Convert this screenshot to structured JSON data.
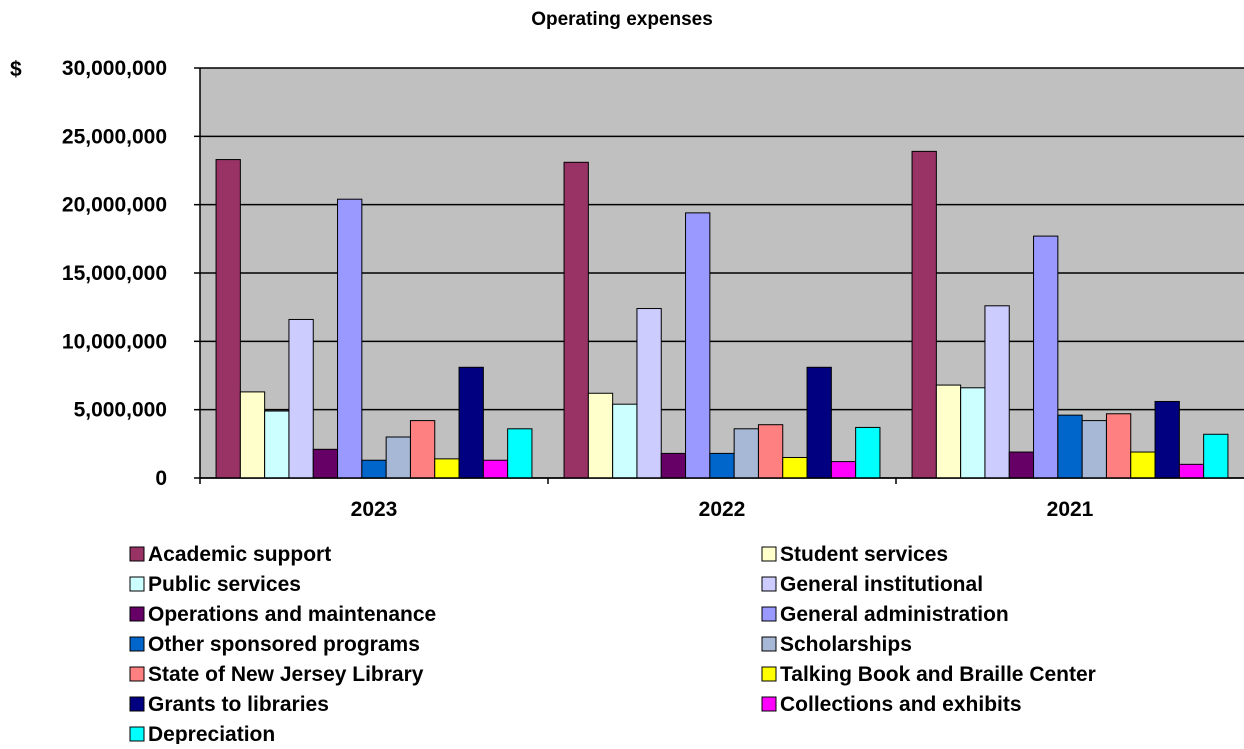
{
  "chart_data": {
    "type": "bar",
    "title": "Operating expenses",
    "currency_symbol": "$",
    "ylim": [
      0,
      30000000
    ],
    "yticks": [
      0,
      5000000,
      10000000,
      15000000,
      20000000,
      25000000,
      30000000
    ],
    "ytick_labels": [
      "0",
      "5,000,000",
      "10,000,000",
      "15,000,000",
      "20,000,000",
      "25,000,000",
      "30,000,000"
    ],
    "categories": [
      "2023",
      "2022",
      "2021"
    ],
    "grid": true,
    "legend_position": "bottom",
    "plot_background": "#c0c0c0",
    "series": [
      {
        "name": "Academic support",
        "color": "#993366",
        "values": [
          23300000,
          23100000,
          23900000
        ]
      },
      {
        "name": "Student services",
        "color": "#ffffcc",
        "values": [
          6300000,
          6200000,
          6800000
        ]
      },
      {
        "name": "Public services",
        "color": "#ccffff",
        "values": [
          4900000,
          5400000,
          6600000
        ]
      },
      {
        "name": "General institutional",
        "color": "#ccccff",
        "values": [
          11600000,
          12400000,
          12600000
        ]
      },
      {
        "name": "Operations and maintenance",
        "color": "#660066",
        "values": [
          2100000,
          1800000,
          1900000
        ]
      },
      {
        "name": "General administration",
        "color": "#9999ff",
        "values": [
          20400000,
          19400000,
          17700000
        ]
      },
      {
        "name": "Other sponsored programs",
        "color": "#0066cc",
        "values": [
          1300000,
          1800000,
          4600000
        ]
      },
      {
        "name": "Scholarships",
        "color": "#a6b8d6",
        "values": [
          3000000,
          3600000,
          4200000
        ]
      },
      {
        "name": "State of New Jersey Library",
        "color": "#ff8080",
        "values": [
          4200000,
          3900000,
          4700000
        ]
      },
      {
        "name": "Talking Book and Braille Center",
        "color": "#ffff00",
        "values": [
          1400000,
          1500000,
          1900000
        ]
      },
      {
        "name": "Grants to libraries",
        "color": "#000080",
        "values": [
          8100000,
          8100000,
          5600000
        ]
      },
      {
        "name": "Collections and exhibits",
        "color": "#ff00ff",
        "values": [
          1300000,
          1200000,
          1000000
        ]
      },
      {
        "name": "Depreciation",
        "color": "#00ffff",
        "values": [
          3600000,
          3700000,
          3200000
        ]
      }
    ]
  }
}
